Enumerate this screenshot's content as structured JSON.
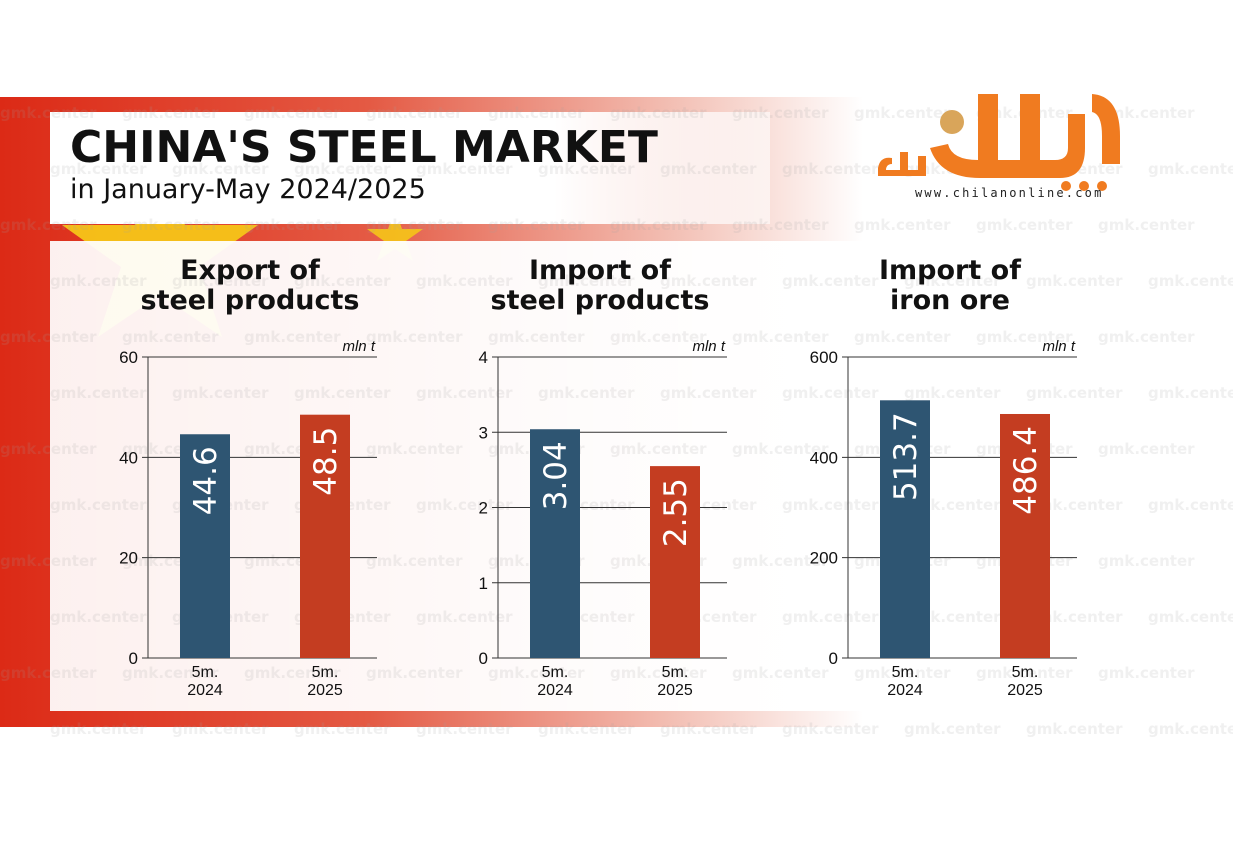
{
  "header": {
    "title": "CHINA'S STEEL MARKET",
    "subtitle": "in January-May 2024/2025"
  },
  "logo": {
    "url_text": "www.chilanonline.com",
    "mark_text": "چیلان آنلاین"
  },
  "watermark": "gmk.center",
  "colors": {
    "bar_2024": "#2e5572",
    "bar_2025": "#c43d21",
    "flag_red": "#dc2a16",
    "flag_yellow": "#f5c518",
    "logo_orange": "#f07b20"
  },
  "chart_data": [
    {
      "type": "bar",
      "title": "Export of steel products",
      "title_lines": [
        "Export of",
        "steel products"
      ],
      "unit": "mln t",
      "categories": [
        "5m. 2024",
        "5m. 2025"
      ],
      "category_lines": [
        [
          "5m.",
          "2024"
        ],
        [
          "5m.",
          "2025"
        ]
      ],
      "values": [
        44.6,
        48.5
      ],
      "labels": [
        "44.6",
        "48.5"
      ],
      "ylim": [
        0,
        60
      ],
      "yticks": [
        0,
        20,
        40,
        60
      ],
      "grid": true
    },
    {
      "type": "bar",
      "title": "Import of steel products",
      "title_lines": [
        "Import of",
        "steel products"
      ],
      "unit": "mln t",
      "categories": [
        "5m. 2024",
        "5m. 2025"
      ],
      "category_lines": [
        [
          "5m.",
          "2024"
        ],
        [
          "5m.",
          "2025"
        ]
      ],
      "values": [
        3.04,
        2.55
      ],
      "labels": [
        "3.04",
        "2.55"
      ],
      "ylim": [
        0,
        4
      ],
      "yticks": [
        0,
        1,
        2,
        3,
        4
      ],
      "grid": true
    },
    {
      "type": "bar",
      "title": "Import of iron ore",
      "title_lines": [
        "Import of",
        "iron ore"
      ],
      "unit": "mln t",
      "categories": [
        "5m. 2024",
        "5m. 2025"
      ],
      "category_lines": [
        [
          "5m.",
          "2024"
        ],
        [
          "5m.",
          "2025"
        ]
      ],
      "values": [
        513.7,
        486.4
      ],
      "labels": [
        "513.7",
        "486.4"
      ],
      "ylim": [
        0,
        600
      ],
      "yticks": [
        0,
        200,
        400,
        600
      ],
      "grid": true
    }
  ]
}
